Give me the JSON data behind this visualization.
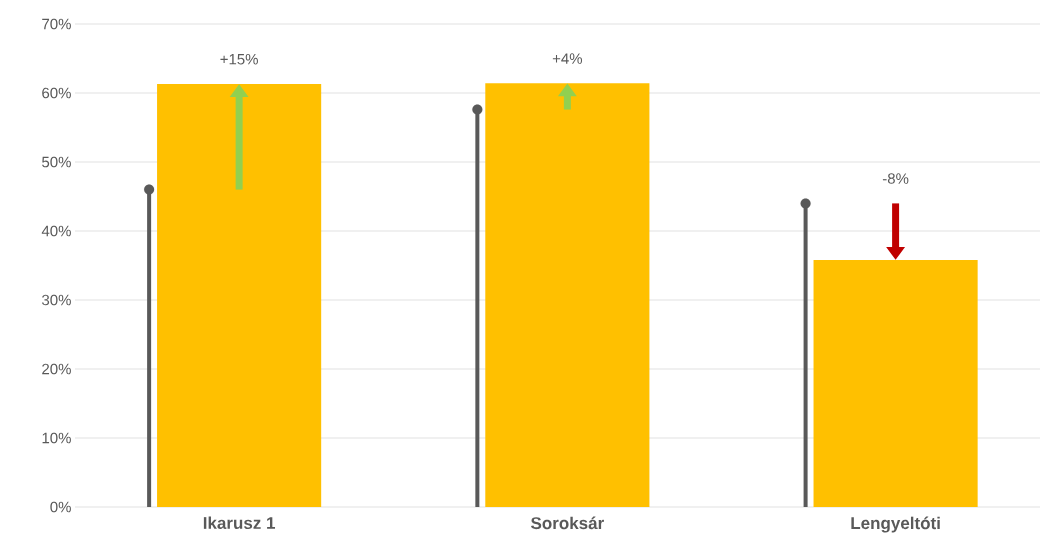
{
  "chart_data": {
    "type": "bar",
    "categories": [
      "Ikarusz 1",
      "Soroksár",
      "Lengyeltóti"
    ],
    "series": [
      {
        "type": "lollipop",
        "color": "#595959",
        "values": [
          46,
          57.6,
          44
        ]
      },
      {
        "color": "#ffc000",
        "values": [
          61.3,
          61.4,
          35.8
        ]
      }
    ],
    "annotations": [
      "+15%",
      "+4%",
      "-8%"
    ],
    "ylim": [
      0,
      70
    ],
    "yticks": [
      {
        "value": 0,
        "label": "0%"
      },
      {
        "value": 10,
        "label": "10%"
      },
      {
        "value": 20,
        "label": "20%"
      },
      {
        "value": 30,
        "label": "30%"
      },
      {
        "value": 40,
        "label": "40%"
      },
      {
        "value": 50,
        "label": "50%"
      },
      {
        "value": 60,
        "label": "60%"
      },
      {
        "value": 70,
        "label": "70%"
      }
    ],
    "grid": "y"
  }
}
